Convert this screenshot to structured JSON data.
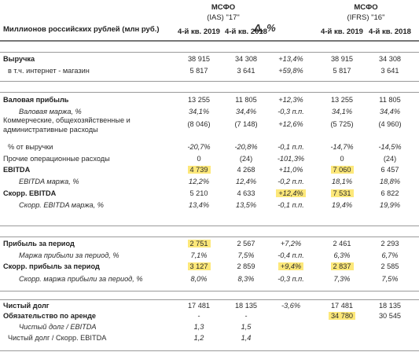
{
  "header": {
    "unit_label": "Миллионов российских рублей (млн руб.)",
    "ias_group": "МСФО",
    "ias_sub": "(IAS) \"17\"",
    "ifrs_group": "МСФО",
    "ifrs_sub": "(IFRS) \"16\"",
    "change": "Δ, %",
    "col1": "4-й кв. 2019",
    "col2": "4-й кв. 2018",
    "col4": "4-й кв. 2019",
    "col5": "4-й кв. 2018"
  },
  "colors": {
    "highlight": "#fde87a",
    "rule": "#9a9a9a"
  },
  "rows": [
    {
      "label": "Выручка",
      "v": [
        "38 915",
        "34 308",
        "+13,4%",
        "38 915",
        "34 308"
      ]
    },
    {
      "label": "в т.ч. интернет - магазин",
      "v": [
        "5 817",
        "3 641",
        "+59,8%",
        "5 817",
        "3 641"
      ]
    },
    {
      "label": "Валовая прибыль",
      "v": [
        "13 255",
        "11 805",
        "+12,3%",
        "13 255",
        "11 805"
      ]
    },
    {
      "label": "Валовая маржа, %",
      "v": [
        "34,1%",
        "34,4%",
        "-0,3 п.п.",
        "34,1%",
        "34,4%"
      ]
    },
    {
      "label": "Коммерческие, общехозяйственные и административные расходы",
      "v": [
        "(8 046)",
        "(7 148)",
        "+12,6%",
        "(5 725)",
        "(4 960)"
      ]
    },
    {
      "label": "% от выручки",
      "v": [
        "-20,7%",
        "-20,8%",
        "-0,1 п.п.",
        "-14,7%",
        "-14,5%"
      ]
    },
    {
      "label": "Прочие операционные расходы",
      "v": [
        "0",
        "(24)",
        "-101,3%",
        "0",
        "(24)"
      ]
    },
    {
      "label": "EBITDA",
      "v": [
        "4 739",
        "4 268",
        "+11,0%",
        "7 060",
        "6 457"
      ]
    },
    {
      "label": "EBITDA маржа, %",
      "v": [
        "12,2%",
        "12,4%",
        "-0,2 п.п.",
        "18,1%",
        "18,8%"
      ]
    },
    {
      "label": "Скорр. EBITDA",
      "v": [
        "5 210",
        "4 633",
        "+12,4%",
        "7 531",
        "6 822"
      ]
    },
    {
      "label": "Скорр. EBITDA маржа, %",
      "v": [
        "13,4%",
        "13,5%",
        "-0,1 п.п.",
        "19,4%",
        "19,9%"
      ]
    },
    {
      "label": "Прибыль за период",
      "v": [
        "2 751",
        "2 567",
        "+7,2%",
        "2 461",
        "2 293"
      ]
    },
    {
      "label": "Маржа прибыли за период, %",
      "v": [
        "7,1%",
        "7,5%",
        "-0,4 п.п.",
        "6,3%",
        "6,7%"
      ]
    },
    {
      "label": "Скорр. прибыль за период",
      "v": [
        "3 127",
        "2 859",
        "+9,4%",
        "2 837",
        "2 585"
      ]
    },
    {
      "label": "Скорр. маржа прибыли за период, %",
      "v": [
        "8,0%",
        "8,3%",
        "-0,3 п.п.",
        "7,3%",
        "7,5%"
      ]
    },
    {
      "label": "Чистый долг",
      "v": [
        "17 481",
        "18 135",
        "-3,6%",
        "17 481",
        "18 135"
      ]
    },
    {
      "label": "Обязательство по аренде",
      "v": [
        "",
        "",
        "",
        "34 780",
        "30 545"
      ]
    },
    {
      "label": "Чистый долг / EBITDA",
      "v": [
        "1,3",
        "1,5",
        "",
        "",
        ""
      ]
    },
    {
      "label": "Чистый долг / Скорр. EBITDA",
      "v": [
        "1,2",
        "1,4",
        "",
        "",
        ""
      ]
    }
  ]
}
